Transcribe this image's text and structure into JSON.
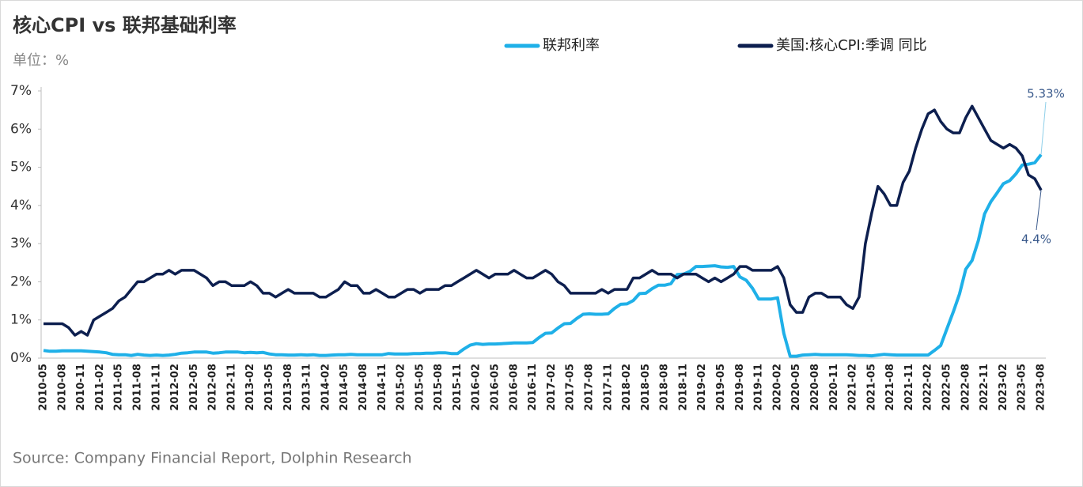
{
  "chart_data": {
    "type": "line",
    "title": "核心CPI vs 联邦基础利率",
    "subtitle": "单位：%",
    "source": "Source: Company Financial Report,  Dolphin Research",
    "categories": [
      "2010-05",
      null,
      null,
      "2010-08",
      null,
      null,
      "2010-11",
      null,
      null,
      "2011-02",
      null,
      null,
      "2011-05",
      null,
      null,
      "2011-08",
      null,
      null,
      "2011-11",
      null,
      null,
      "2012-02",
      null,
      null,
      "2012-05",
      null,
      null,
      "2012-08",
      null,
      null,
      "2012-11",
      null,
      null,
      "2013-02",
      null,
      null,
      "2013-05",
      null,
      null,
      "2013-08",
      null,
      null,
      "2013-11",
      null,
      null,
      "2014-02",
      null,
      null,
      "2014-05",
      null,
      null,
      "2014-08",
      null,
      null,
      "2014-11",
      null,
      null,
      "2015-02",
      null,
      null,
      "2015-05",
      null,
      null,
      "2015-08",
      null,
      null,
      "2015-11",
      null,
      null,
      "2016-02",
      null,
      null,
      "2016-05",
      null,
      null,
      "2016-08",
      null,
      null,
      "2016-11",
      null,
      null,
      "2017-02",
      null,
      null,
      "2017-05",
      null,
      null,
      "2017-08",
      null,
      null,
      "2017-11",
      null,
      null,
      "2018-02",
      null,
      null,
      "2018-05",
      null,
      null,
      "2018-08",
      null,
      null,
      "2018-11",
      null,
      null,
      "2019-02",
      null,
      null,
      "2019-05",
      null,
      null,
      "2019-08",
      null,
      null,
      "2019-11",
      null,
      null,
      "2020-02",
      null,
      null,
      "2020-05",
      null,
      null,
      "2020-08",
      null,
      null,
      "2020-11",
      null,
      null,
      "2021-02",
      null,
      null,
      "2021-05",
      null,
      null,
      "2021-08",
      null,
      null,
      "2021-11",
      null,
      null,
      "2022-02",
      null,
      null,
      "2022-05",
      null,
      null,
      "2022-08",
      null,
      null,
      "2022-11",
      null,
      null,
      "2023-02",
      null,
      null,
      "2023-05",
      null,
      null,
      "2023-08"
    ],
    "series": [
      {
        "name": "联邦利率",
        "color": "#1fb0e8",
        "value_labels": {
          "159": "5.33%"
        },
        "values": [
          0.2,
          0.18,
          0.18,
          0.19,
          0.19,
          0.19,
          0.19,
          0.18,
          0.17,
          0.16,
          0.14,
          0.1,
          0.09,
          0.09,
          0.07,
          0.1,
          0.08,
          0.07,
          0.08,
          0.07,
          0.08,
          0.1,
          0.13,
          0.14,
          0.16,
          0.16,
          0.16,
          0.13,
          0.14,
          0.16,
          0.16,
          0.16,
          0.14,
          0.15,
          0.14,
          0.15,
          0.11,
          0.09,
          0.09,
          0.08,
          0.08,
          0.09,
          0.08,
          0.09,
          0.07,
          0.07,
          0.08,
          0.09,
          0.09,
          0.1,
          0.09,
          0.09,
          0.09,
          0.09,
          0.09,
          0.12,
          0.11,
          0.11,
          0.11,
          0.12,
          0.12,
          0.13,
          0.13,
          0.14,
          0.14,
          0.12,
          0.12,
          0.24,
          0.34,
          0.38,
          0.36,
          0.37,
          0.37,
          0.38,
          0.39,
          0.4,
          0.4,
          0.4,
          0.41,
          0.54,
          0.65,
          0.66,
          0.79,
          0.9,
          0.91,
          1.04,
          1.15,
          1.16,
          1.15,
          1.15,
          1.16,
          1.3,
          1.41,
          1.42,
          1.51,
          1.69,
          1.7,
          1.82,
          1.91,
          1.91,
          1.95,
          2.19,
          2.2,
          2.27,
          2.4,
          2.4,
          2.41,
          2.42,
          2.39,
          2.38,
          2.4,
          2.13,
          2.04,
          1.83,
          1.55,
          1.55,
          1.55,
          1.58,
          0.65,
          0.05,
          0.05,
          0.08,
          0.09,
          0.1,
          0.09,
          0.09,
          0.09,
          0.09,
          0.09,
          0.08,
          0.07,
          0.07,
          0.06,
          0.08,
          0.1,
          0.09,
          0.08,
          0.08,
          0.08,
          0.08,
          0.08,
          0.08,
          0.2,
          0.33,
          0.77,
          1.21,
          1.68,
          2.33,
          2.56,
          3.08,
          3.78,
          4.1,
          4.33,
          4.57,
          4.65,
          4.83,
          5.06,
          5.08,
          5.12,
          5.33
        ]
      },
      {
        "name": "美国:核心CPI:季调 同比",
        "color": "#0d1f4f",
        "value_labels": {
          "159": "4.4%"
        },
        "values": [
          0.9,
          0.9,
          0.9,
          0.9,
          0.8,
          0.6,
          0.7,
          0.6,
          1.0,
          1.1,
          1.2,
          1.3,
          1.5,
          1.6,
          1.8,
          2.0,
          2.0,
          2.1,
          2.2,
          2.2,
          2.3,
          2.2,
          2.3,
          2.3,
          2.3,
          2.2,
          2.1,
          1.9,
          2.0,
          2.0,
          1.9,
          1.9,
          1.9,
          2.0,
          1.9,
          1.7,
          1.7,
          1.6,
          1.7,
          1.8,
          1.7,
          1.7,
          1.7,
          1.7,
          1.6,
          1.6,
          1.7,
          1.8,
          2.0,
          1.9,
          1.9,
          1.7,
          1.7,
          1.8,
          1.7,
          1.6,
          1.6,
          1.7,
          1.8,
          1.8,
          1.7,
          1.8,
          1.8,
          1.8,
          1.9,
          1.9,
          2.0,
          2.1,
          2.2,
          2.3,
          2.2,
          2.1,
          2.2,
          2.2,
          2.2,
          2.3,
          2.2,
          2.1,
          2.1,
          2.2,
          2.3,
          2.2,
          2.0,
          1.9,
          1.7,
          1.7,
          1.7,
          1.7,
          1.7,
          1.8,
          1.7,
          1.8,
          1.8,
          1.8,
          2.1,
          2.1,
          2.2,
          2.3,
          2.2,
          2.2,
          2.2,
          2.1,
          2.2,
          2.2,
          2.2,
          2.1,
          2.0,
          2.1,
          2.0,
          2.1,
          2.2,
          2.4,
          2.4,
          2.3,
          2.3,
          2.3,
          2.3,
          2.4,
          2.1,
          1.4,
          1.2,
          1.2,
          1.6,
          1.7,
          1.7,
          1.6,
          1.6,
          1.6,
          1.4,
          1.3,
          1.6,
          3.0,
          3.8,
          4.5,
          4.3,
          4.0,
          4.0,
          4.6,
          4.9,
          5.5,
          6.0,
          6.4,
          6.5,
          6.2,
          6.0,
          5.9,
          5.9,
          6.3,
          6.6,
          6.3,
          6.0,
          5.7,
          5.6,
          5.5,
          5.6,
          5.5,
          5.3,
          4.8,
          4.7,
          4.4
        ]
      }
    ],
    "ylim": [
      0,
      7
    ],
    "yticks": [
      {
        "value": 0,
        "label": "0%"
      },
      {
        "value": 1,
        "label": "1%"
      },
      {
        "value": 2,
        "label": "2%"
      },
      {
        "value": 3,
        "label": "3%"
      },
      {
        "value": 4,
        "label": "4%"
      },
      {
        "value": 5,
        "label": "5%"
      },
      {
        "value": 6,
        "label": "6%"
      },
      {
        "value": 7,
        "label": "7%"
      }
    ],
    "grid": false
  }
}
